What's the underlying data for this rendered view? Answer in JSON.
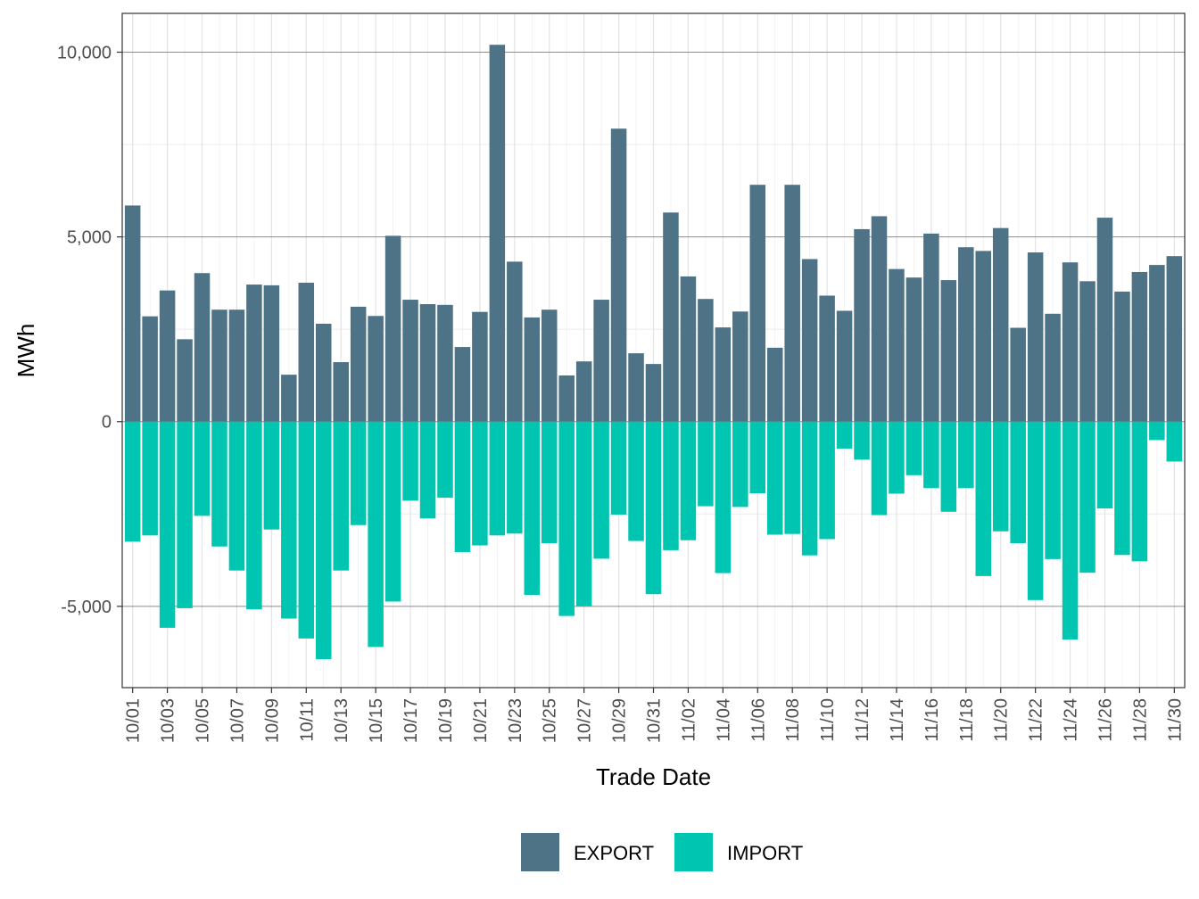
{
  "chart_data": {
    "type": "bar",
    "stacked": true,
    "xlabel": "Trade Date",
    "ylabel": "MWh",
    "ylim": [
      -7200,
      11050
    ],
    "y_ticks": [
      -5000,
      0,
      5000,
      10000
    ],
    "y_tick_labels": [
      "-5,000",
      "0",
      "5,000",
      "10,000"
    ],
    "x_tick_labels": [
      "10/01",
      "10/03",
      "10/05",
      "10/07",
      "10/09",
      "10/11",
      "10/13",
      "10/15",
      "10/17",
      "10/19",
      "10/21",
      "10/23",
      "10/25",
      "10/27",
      "10/29",
      "10/31",
      "11/02",
      "11/04",
      "11/06",
      "11/08",
      "11/10",
      "11/12",
      "11/14",
      "11/16",
      "11/18",
      "11/20",
      "11/22",
      "11/24",
      "11/26",
      "11/28",
      "11/30"
    ],
    "grid": true,
    "legend_position": "bottom",
    "categories": [
      "10/01",
      "10/02",
      "10/03",
      "10/04",
      "10/05",
      "10/06",
      "10/07",
      "10/08",
      "10/09",
      "10/10",
      "10/11",
      "10/12",
      "10/13",
      "10/14",
      "10/15",
      "10/16",
      "10/17",
      "10/18",
      "10/19",
      "10/20",
      "10/21",
      "10/22",
      "10/23",
      "10/24",
      "10/25",
      "10/26",
      "10/27",
      "10/28",
      "10/29",
      "10/30",
      "10/31",
      "11/01",
      "11/02",
      "11/03",
      "11/04",
      "11/05",
      "11/06",
      "11/07",
      "11/08",
      "11/09",
      "11/10",
      "11/11",
      "11/12",
      "11/13",
      "11/14",
      "11/15",
      "11/16",
      "11/17",
      "11/18",
      "11/19",
      "11/20",
      "11/21",
      "11/22",
      "11/23",
      "11/24",
      "11/25",
      "11/26",
      "11/27",
      "11/28",
      "11/29",
      "11/30"
    ],
    "series": [
      {
        "name": "EXPORT",
        "color": "#4f7386",
        "values": [
          5850,
          2850,
          3550,
          2230,
          4020,
          3030,
          3030,
          3710,
          3690,
          1270,
          3760,
          2650,
          1610,
          3110,
          2860,
          5030,
          3300,
          3180,
          3160,
          2020,
          2970,
          10200,
          4330,
          2820,
          3030,
          1250,
          1630,
          3300,
          7930,
          1850,
          1560,
          5660,
          3930,
          3320,
          2550,
          2980,
          6410,
          2000,
          6410,
          4400,
          3410,
          3000,
          5210,
          5560,
          4130,
          3900,
          5090,
          3830,
          4720,
          4620,
          5240,
          2540,
          4580,
          2920,
          4310,
          3800,
          5520,
          3520,
          4050,
          4240,
          4480
        ]
      },
      {
        "name": "IMPORT",
        "color": "#00c5b0",
        "values": [
          -3250,
          -3080,
          -5580,
          -5050,
          -2550,
          -3380,
          -4030,
          -5080,
          -2920,
          -5330,
          -5870,
          -6430,
          -4030,
          -2800,
          -6100,
          -4870,
          -2140,
          -2620,
          -2060,
          -3530,
          -3350,
          -3080,
          -3030,
          -4690,
          -3290,
          -5260,
          -4990,
          -3710,
          -2520,
          -3230,
          -4670,
          -3480,
          -3210,
          -2290,
          -4100,
          -2310,
          -1940,
          -3060,
          -3040,
          -3620,
          -3180,
          -730,
          -1030,
          -2530,
          -1950,
          -1450,
          -1800,
          -2440,
          -1800,
          -4180,
          -2970,
          -3290,
          -4830,
          -3720,
          -5900,
          -4090,
          -2350,
          -3610,
          -3780,
          -500,
          -1080
        ]
      }
    ]
  }
}
